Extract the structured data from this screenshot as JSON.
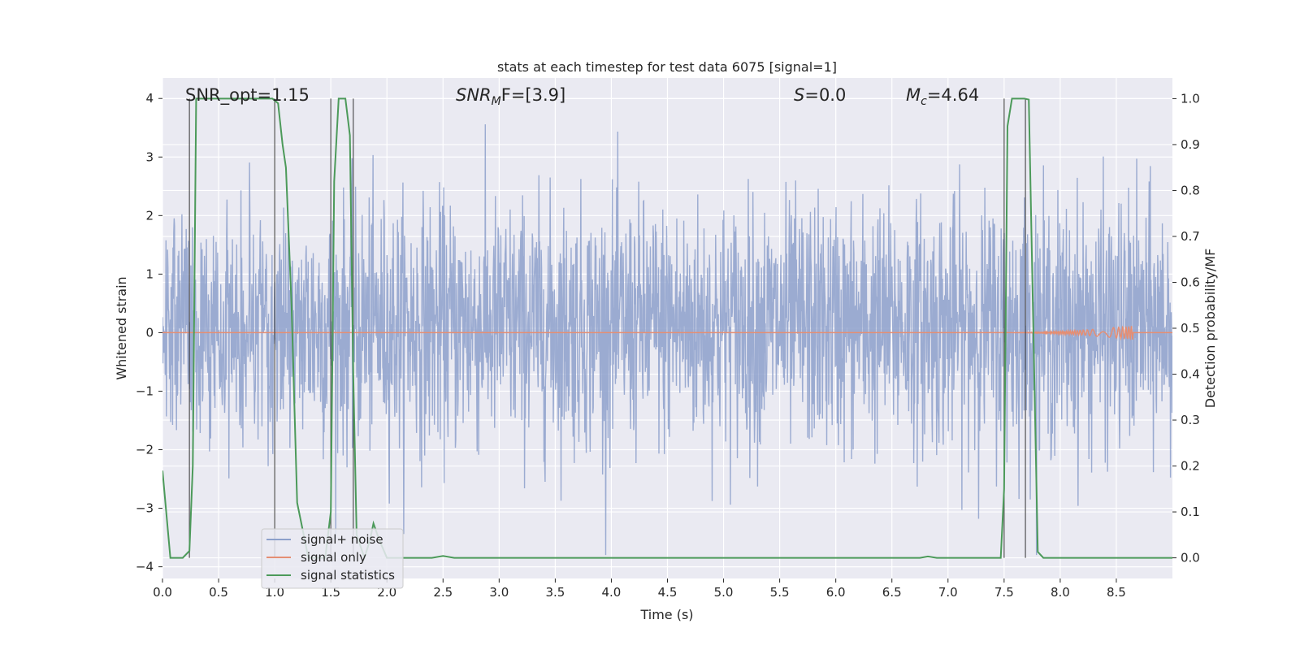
{
  "chart_data": {
    "type": "line",
    "title": "stats at each timestep for test data 6075 [signal=1]",
    "xlabel": "Time (s)",
    "ylabel_left": "Whitened strain",
    "ylabel_right": "Detection probability/MF",
    "xlim": [
      0.0,
      9.0
    ],
    "ylim_left": [
      -4.2,
      4.35
    ],
    "ylim_right": [
      -0.045,
      1.045
    ],
    "x_ticks": [
      "0.0",
      "0.5",
      "1.0",
      "1.5",
      "2.0",
      "2.5",
      "3.0",
      "3.5",
      "4.0",
      "4.5",
      "5.0",
      "5.5",
      "6.0",
      "6.5",
      "7.0",
      "7.5",
      "8.0",
      "8.5"
    ],
    "y_ticks_left": [
      "4",
      "3",
      "2",
      "1",
      "0",
      "−1",
      "−2",
      "−3",
      "−4"
    ],
    "y_ticks_right": [
      "1.0",
      "0.9",
      "0.8",
      "0.7",
      "0.6",
      "0.5",
      "0.4",
      "0.3",
      "0.2",
      "0.1",
      "0.0"
    ],
    "annotations": {
      "snr_opt": "SNR_opt=1.15",
      "snr_mf_main": "SNR",
      "snr_mf_sub": "M",
      "snr_mf_rest": "F=[3.9]",
      "s_main": "S",
      "s_rest": "=0.0",
      "mc_main": "M",
      "mc_sub": "c",
      "mc_rest": "=4.64"
    },
    "series": [
      {
        "name": "signal+ noise",
        "color": "#8da0cb",
        "description_range": [
          -3.8,
          4.0
        ],
        "typical_band": [
          -2.0,
          2.4
        ]
      },
      {
        "name": "signal only",
        "color": "#e58e73",
        "chirp_start": 7.5,
        "chirp_end": 8.65,
        "chirp_peak_amp": 0.12
      },
      {
        "name": "signal statistics",
        "color": "#4c9a5a",
        "x": [
          0.0,
          0.07,
          0.18,
          0.24,
          0.27,
          0.3,
          0.5,
          0.75,
          0.98,
          1.03,
          1.07,
          1.1,
          1.15,
          1.2,
          1.3,
          1.45,
          1.5,
          1.53,
          1.57,
          1.63,
          1.67,
          1.7,
          1.73,
          1.8,
          1.85,
          1.88,
          1.93,
          2.0,
          2.2,
          2.4,
          2.5,
          2.6,
          3.0,
          4.0,
          5.0,
          6.0,
          6.5,
          6.75,
          6.82,
          6.9,
          7.2,
          7.47,
          7.5,
          7.53,
          7.57,
          7.6,
          7.68,
          7.72,
          7.8,
          7.85,
          8.0,
          8.5,
          9.0
        ],
        "y": [
          0.19,
          0.0,
          0.0,
          0.015,
          0.2,
          1.0,
          1.0,
          1.0,
          1.0,
          0.99,
          0.9,
          0.85,
          0.55,
          0.12,
          0.0,
          0.0,
          0.1,
          0.82,
          1.0,
          1.0,
          0.92,
          0.4,
          0.05,
          0.0,
          0.04,
          0.075,
          0.04,
          0.0,
          0.0,
          0.0,
          0.004,
          0.0,
          0.0,
          0.0,
          0.0,
          0.0,
          0.0,
          0.0,
          0.003,
          0.0,
          0.0,
          0.0,
          0.15,
          0.94,
          1.0,
          1.0,
          1.0,
          0.998,
          0.013,
          0.0,
          0.0,
          0.0,
          0.0
        ]
      }
    ],
    "vertical_markers": [
      {
        "x": 0.24,
        "y0": 0.0,
        "y1": 1.0
      },
      {
        "x": 1.0,
        "y0": 0.0,
        "y1": 1.0
      },
      {
        "x": 1.5,
        "y0": 0.0,
        "y1": 1.0
      },
      {
        "x": 1.7,
        "y0": 0.0,
        "y1": 1.0
      },
      {
        "x": 7.5,
        "y0": 0.0,
        "y1": 1.0
      },
      {
        "x": 7.69,
        "y0": 0.0,
        "y1": 1.0
      }
    ],
    "legend_position": "lower-left",
    "grid": true
  }
}
